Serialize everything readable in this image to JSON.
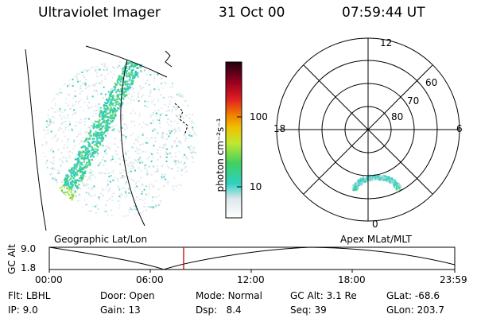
{
  "header": {
    "title": "Ultraviolet Imager",
    "date": "31 Oct 00",
    "time": "07:59:44 UT"
  },
  "geo_panel": {
    "label": "Geographic Lat/Lon"
  },
  "apex_panel": {
    "label": "Apex  MLat/MLT",
    "mlt_labels": {
      "top": "12",
      "left": "18",
      "right": "6",
      "bottom": "0"
    },
    "lat_labels": [
      "60",
      "70",
      "80"
    ]
  },
  "colorbar": {
    "unit_label": "photon cm⁻²s⁻¹",
    "ticks": [
      "100",
      "10"
    ],
    "scale": "log"
  },
  "altitude_plot": {
    "ylabel": "GC Alt",
    "yticks": [
      "9.0",
      "1.8"
    ],
    "xticks": [
      "00:00",
      "06:00",
      "12:00",
      "18:00",
      "23:59"
    ],
    "current_time_marker": "07:59:44",
    "marker_color": "#cc0000"
  },
  "status": {
    "col1": [
      {
        "key": "Flt:",
        "value": "LBHL"
      },
      {
        "key": "IP:",
        "value": "9.0"
      }
    ],
    "col2": [
      {
        "key": "Door:",
        "value": "Open"
      },
      {
        "key": "Gain:",
        "value": "13"
      }
    ],
    "col3": [
      {
        "key": "Mode:",
        "value": "Normal"
      },
      {
        "key": "Dsp:",
        "value": "8.4"
      }
    ],
    "col4": [
      {
        "key": "GC Alt:",
        "value": "3.1 Re"
      },
      {
        "key": "Seq:",
        "value": "39"
      }
    ],
    "col5": [
      {
        "key": "GLat:",
        "value": "-68.6"
      },
      {
        "key": "GLon:",
        "value": "203.7"
      }
    ]
  }
}
